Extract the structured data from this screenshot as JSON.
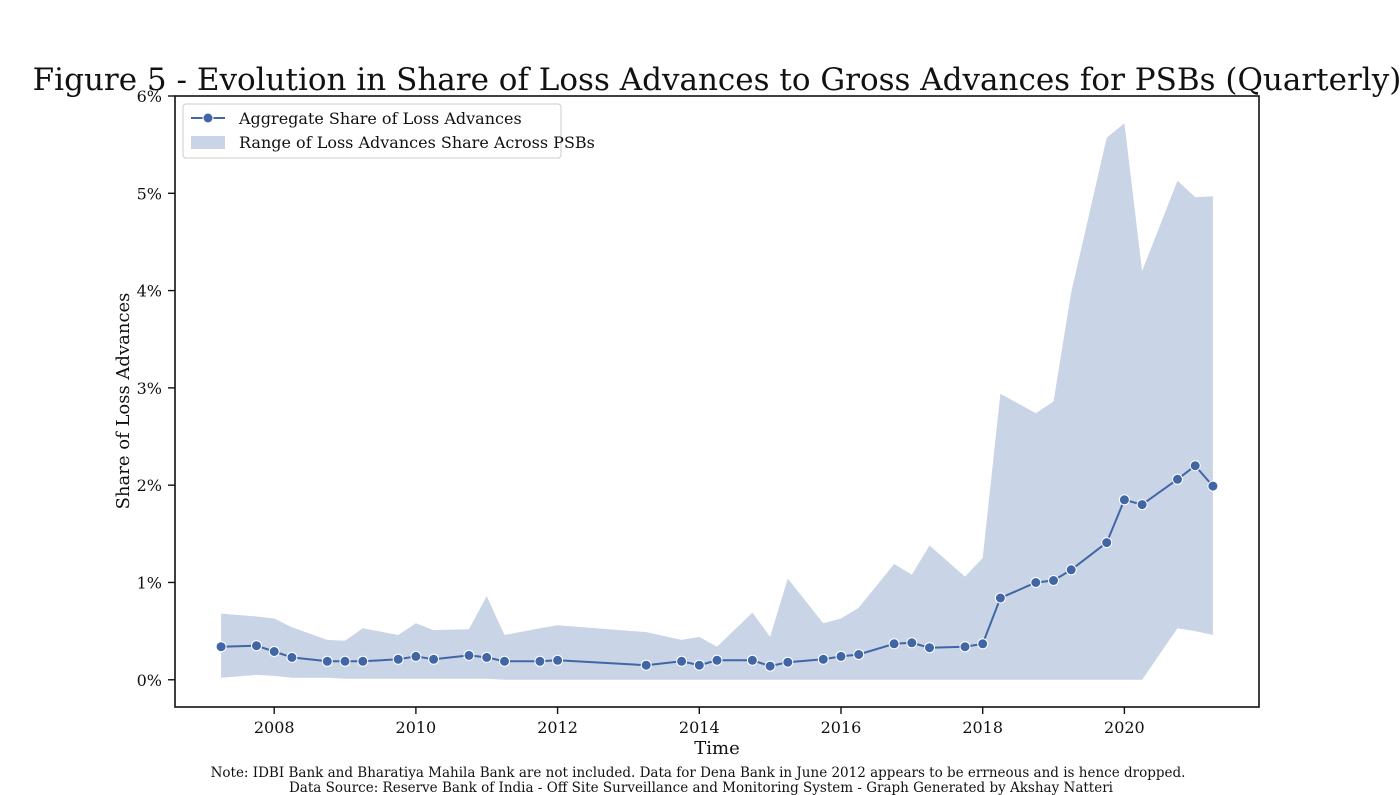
{
  "chart_data": {
    "type": "line",
    "title": "Figure 5 - Evolution in Share of Loss Advances to Gross Advances for PSBs (Quarterly)",
    "xlabel": "Time",
    "ylabel": "Share of Loss Advances",
    "xlim": [
      2006.6,
      2021.9
    ],
    "ylim": [
      -0.28,
      6.0
    ],
    "x_ticks": [
      2008,
      2010,
      2012,
      2014,
      2016,
      2018,
      2020
    ],
    "x_tick_labels": [
      "2008",
      "2010",
      "2012",
      "2014",
      "2016",
      "2018",
      "2020"
    ],
    "y_ticks": [
      0,
      1,
      2,
      3,
      4,
      5,
      6
    ],
    "y_tick_labels": [
      "0%",
      "1%",
      "2%",
      "3%",
      "4%",
      "5%",
      "6%"
    ],
    "grid": false,
    "legend_position": "top-left",
    "legend": [
      {
        "label": "Aggregate Share of Loss Advances",
        "kind": "line-marker"
      },
      {
        "label": "Range of Loss Advances Share Across PSBs",
        "kind": "band"
      }
    ],
    "colors": {
      "line": "#4166a6",
      "band": "#c9d4e6",
      "marker_edge": "#ffffff"
    },
    "series": [
      {
        "name": "Aggregate Share of Loss Advances",
        "x": [
          2007.25,
          2007.75,
          2008.0,
          2008.25,
          2008.75,
          2009.0,
          2009.25,
          2009.75,
          2010.0,
          2010.25,
          2010.75,
          2011.0,
          2011.25,
          2011.75,
          2012.0,
          2013.25,
          2013.75,
          2014.0,
          2014.25,
          2014.75,
          2015.0,
          2015.25,
          2015.75,
          2016.0,
          2016.25,
          2016.75,
          2017.0,
          2017.25,
          2017.75,
          2018.0,
          2018.25,
          2018.75,
          2019.0,
          2019.25,
          2019.75,
          2020.0,
          2020.25,
          2020.75,
          2021.0,
          2021.25
        ],
        "y": [
          0.34,
          0.35,
          0.29,
          0.23,
          0.19,
          0.19,
          0.19,
          0.21,
          0.24,
          0.21,
          0.25,
          0.23,
          0.19,
          0.19,
          0.2,
          0.15,
          0.19,
          0.15,
          0.2,
          0.2,
          0.14,
          0.18,
          0.21,
          0.24,
          0.26,
          0.37,
          0.38,
          0.33,
          0.34,
          0.37,
          0.84,
          1.0,
          1.02,
          1.13,
          1.41,
          1.85,
          1.8,
          2.06,
          2.2,
          1.99
        ]
      },
      {
        "name": "Range of Loss Advances Share Across PSBs",
        "x": [
          2007.25,
          2007.75,
          2008.0,
          2008.25,
          2008.75,
          2009.0,
          2009.25,
          2009.75,
          2010.0,
          2010.25,
          2010.75,
          2011.0,
          2011.25,
          2011.75,
          2012.0,
          2013.25,
          2013.75,
          2014.0,
          2014.25,
          2014.75,
          2015.0,
          2015.25,
          2015.75,
          2016.0,
          2016.25,
          2016.75,
          2017.0,
          2017.25,
          2017.75,
          2018.0,
          2018.25,
          2018.75,
          2019.0,
          2019.25,
          2019.75,
          2020.0,
          2020.25,
          2020.75,
          2021.0,
          2021.25
        ],
        "lower": [
          0.02,
          0.05,
          0.04,
          0.02,
          0.02,
          0.01,
          0.01,
          0.01,
          0.01,
          0.01,
          0.01,
          0.01,
          0.0,
          0.0,
          0.0,
          0.0,
          0.0,
          0.0,
          0.0,
          0.0,
          0.0,
          0.0,
          0.0,
          0.0,
          0.0,
          0.0,
          0.0,
          0.0,
          0.0,
          0.0,
          0.0,
          0.0,
          0.0,
          0.0,
          0.0,
          0.0,
          0.0,
          0.53,
          0.5,
          0.46
        ],
        "upper": [
          0.68,
          0.65,
          0.63,
          0.54,
          0.41,
          0.4,
          0.53,
          0.46,
          0.58,
          0.51,
          0.52,
          0.86,
          0.46,
          0.53,
          0.56,
          0.49,
          0.41,
          0.44,
          0.34,
          0.69,
          0.44,
          1.04,
          0.58,
          0.63,
          0.74,
          1.19,
          1.08,
          1.38,
          1.06,
          1.25,
          2.94,
          2.74,
          2.86,
          3.98,
          5.57,
          5.72,
          4.2,
          5.13,
          4.96,
          4.97
        ]
      }
    ],
    "notes": [
      "Note: IDBI Bank and Bharatiya Mahila Bank are not included. Data for Dena Bank in June 2012 appears to be errneous and is hence dropped.",
      "Data Source: Reserve Bank of India - Off Site Surveillance and Monitoring System - Graph Generated by Akshay Natteri"
    ]
  }
}
